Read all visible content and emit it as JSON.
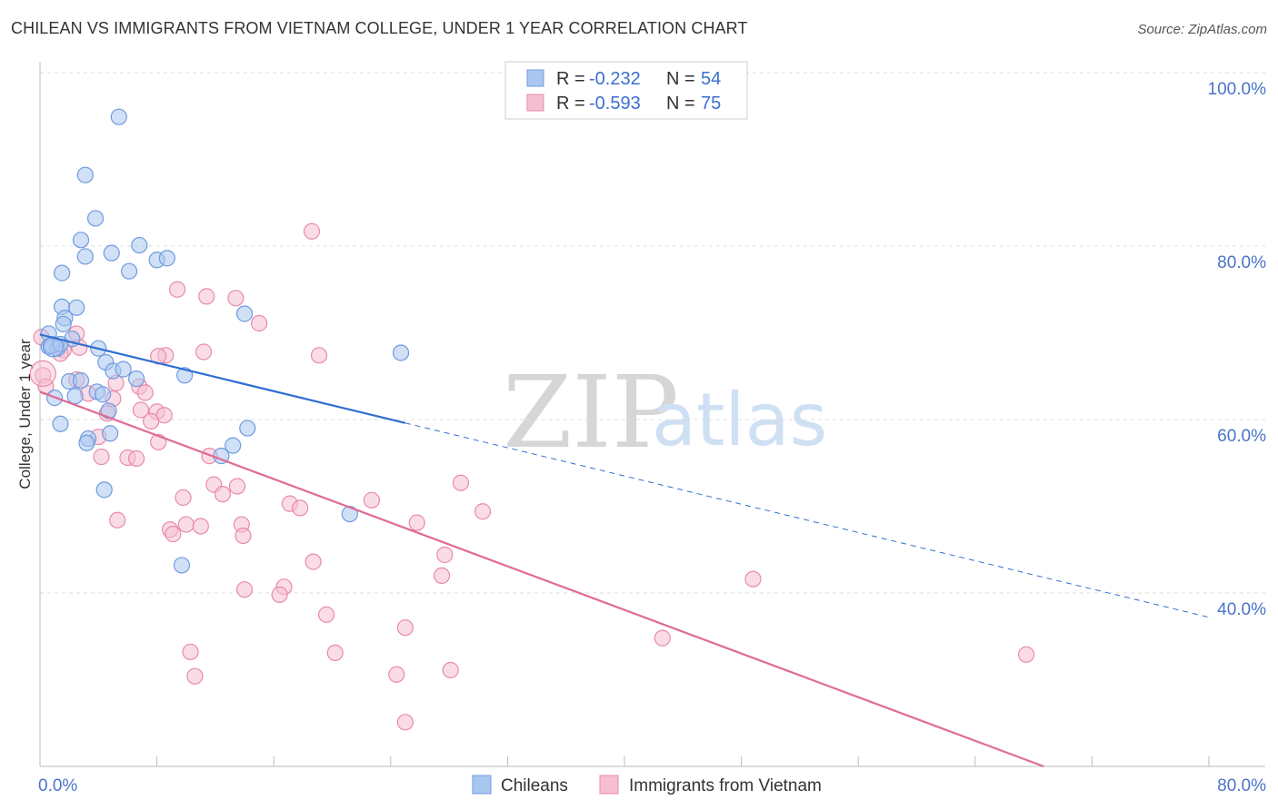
{
  "header": {
    "title": "CHILEAN VS IMMIGRANTS FROM VIETNAM COLLEGE, UNDER 1 YEAR CORRELATION CHART",
    "source": "Source: ZipAtlas.com"
  },
  "watermark": {
    "zip": "ZIP",
    "atlas": "atlas"
  },
  "legend": {
    "rows": [
      {
        "r_label": "R =",
        "r_value": "-0.232",
        "n_label": "N =",
        "n_value": "54"
      },
      {
        "r_label": "R =",
        "r_value": "-0.593",
        "n_label": "N =",
        "n_value": "75"
      }
    ]
  },
  "bottom_legend": {
    "series1": "Chileans",
    "series2": "Immigrants from Vietnam"
  },
  "colors": {
    "blue_fill": "#a9c6ef",
    "blue_stroke": "#6f9be0",
    "blue_line": "#2f6fd0",
    "pink_fill": "#f6bfd1",
    "pink_stroke": "#e98aaa",
    "pink_line": "#e06b96",
    "grid": "#dddddd",
    "axis_text": "#4a74c9"
  },
  "chart_data": {
    "type": "scatter",
    "title": "CHILEAN VS IMMIGRANTS FROM VIETNAM COLLEGE, UNDER 1 YEAR CORRELATION CHART",
    "xlabel": "",
    "ylabel": "College, Under 1 year",
    "xlim": [
      0,
      80
    ],
    "ylim": [
      20,
      100
    ],
    "x_tick_labels": [
      "0.0%",
      "80.0%"
    ],
    "y_tick_labels": [
      "100.0%",
      "80.0%",
      "60.0%",
      "40.0%"
    ],
    "y_ticks": [
      100,
      80,
      60,
      40
    ],
    "grid": true,
    "series": [
      {
        "name": "Chileans",
        "color": "#6f9be0",
        "trend": {
          "x0": 0,
          "y0": 69.8,
          "x1": 25,
          "y1": 59.6,
          "dash_to_x": 80,
          "dash_to_y": 37.2
        },
        "points": [
          [
            5.4,
            94.9
          ],
          [
            3.1,
            88.2
          ],
          [
            3.8,
            83.2
          ],
          [
            2.8,
            80.7
          ],
          [
            6.8,
            80.1
          ],
          [
            4.9,
            79.2
          ],
          [
            3.1,
            78.8
          ],
          [
            8.0,
            78.4
          ],
          [
            8.7,
            78.6
          ],
          [
            1.5,
            76.9
          ],
          [
            6.1,
            77.1
          ],
          [
            1.5,
            73.0
          ],
          [
            2.5,
            72.9
          ],
          [
            14.0,
            72.2
          ],
          [
            1.7,
            71.7
          ],
          [
            1.6,
            71.0
          ],
          [
            0.6,
            69.9
          ],
          [
            2.2,
            69.3
          ],
          [
            0.6,
            68.4
          ],
          [
            1.2,
            68.2
          ],
          [
            0.8,
            68.5
          ],
          [
            1.4,
            68.7
          ],
          [
            4.0,
            68.2
          ],
          [
            24.7,
            67.7
          ],
          [
            4.5,
            66.6
          ],
          [
            5.0,
            65.6
          ],
          [
            5.7,
            65.8
          ],
          [
            9.9,
            65.1
          ],
          [
            6.6,
            64.7
          ],
          [
            2.0,
            64.4
          ],
          [
            2.8,
            64.5
          ],
          [
            3.9,
            63.2
          ],
          [
            4.3,
            62.9
          ],
          [
            2.4,
            62.7
          ],
          [
            1.0,
            62.5
          ],
          [
            4.7,
            61.0
          ],
          [
            1.4,
            59.5
          ],
          [
            14.2,
            59.0
          ],
          [
            4.8,
            58.4
          ],
          [
            3.3,
            57.8
          ],
          [
            3.2,
            57.3
          ],
          [
            13.2,
            57.0
          ],
          [
            12.4,
            55.8
          ],
          [
            4.4,
            51.9
          ],
          [
            21.2,
            49.1
          ],
          [
            9.7,
            43.2
          ]
        ]
      },
      {
        "name": "Immigrants from Vietnam",
        "color": "#e98aaa",
        "trend": {
          "x0": 0,
          "y0": 63.2,
          "x1": 68.7,
          "y1": 20.0
        },
        "points": [
          [
            18.6,
            81.7
          ],
          [
            9.4,
            75.0
          ],
          [
            11.4,
            74.2
          ],
          [
            13.4,
            74.0
          ],
          [
            15.0,
            71.1
          ],
          [
            0.1,
            69.5
          ],
          [
            2.5,
            69.9
          ],
          [
            2.7,
            68.3
          ],
          [
            1.6,
            68.0
          ],
          [
            1.4,
            67.6
          ],
          [
            8.6,
            67.4
          ],
          [
            8.1,
            67.3
          ],
          [
            11.2,
            67.8
          ],
          [
            19.1,
            67.4
          ],
          [
            0.2,
            65.1
          ],
          [
            0.4,
            63.8
          ],
          [
            2.5,
            64.6
          ],
          [
            3.3,
            63.0
          ],
          [
            5.2,
            64.2
          ],
          [
            6.8,
            63.8
          ],
          [
            7.2,
            63.1
          ],
          [
            5.0,
            62.4
          ],
          [
            4.6,
            60.7
          ],
          [
            6.9,
            61.1
          ],
          [
            8.0,
            60.9
          ],
          [
            8.5,
            60.5
          ],
          [
            7.6,
            59.8
          ],
          [
            4.0,
            58.0
          ],
          [
            8.1,
            57.4
          ],
          [
            4.2,
            55.7
          ],
          [
            6.0,
            55.6
          ],
          [
            6.6,
            55.5
          ],
          [
            11.6,
            55.8
          ],
          [
            11.9,
            52.5
          ],
          [
            13.5,
            52.3
          ],
          [
            28.8,
            52.7
          ],
          [
            9.8,
            51.0
          ],
          [
            12.5,
            51.4
          ],
          [
            17.1,
            50.3
          ],
          [
            17.8,
            49.8
          ],
          [
            22.7,
            50.7
          ],
          [
            30.3,
            49.4
          ],
          [
            5.3,
            48.4
          ],
          [
            8.9,
            47.3
          ],
          [
            9.1,
            46.8
          ],
          [
            10.0,
            47.9
          ],
          [
            11.0,
            47.7
          ],
          [
            13.8,
            47.9
          ],
          [
            13.9,
            46.6
          ],
          [
            25.8,
            48.1
          ],
          [
            27.7,
            44.4
          ],
          [
            18.7,
            43.6
          ],
          [
            27.5,
            42.0
          ],
          [
            48.8,
            41.6
          ],
          [
            14.0,
            40.4
          ],
          [
            16.7,
            40.7
          ],
          [
            16.4,
            39.8
          ],
          [
            19.6,
            37.5
          ],
          [
            25.0,
            36.0
          ],
          [
            42.6,
            34.8
          ],
          [
            10.3,
            33.2
          ],
          [
            20.2,
            33.1
          ],
          [
            67.5,
            32.9
          ],
          [
            10.6,
            30.4
          ],
          [
            24.4,
            30.6
          ],
          [
            28.1,
            31.1
          ],
          [
            25.0,
            25.1
          ]
        ]
      }
    ]
  }
}
